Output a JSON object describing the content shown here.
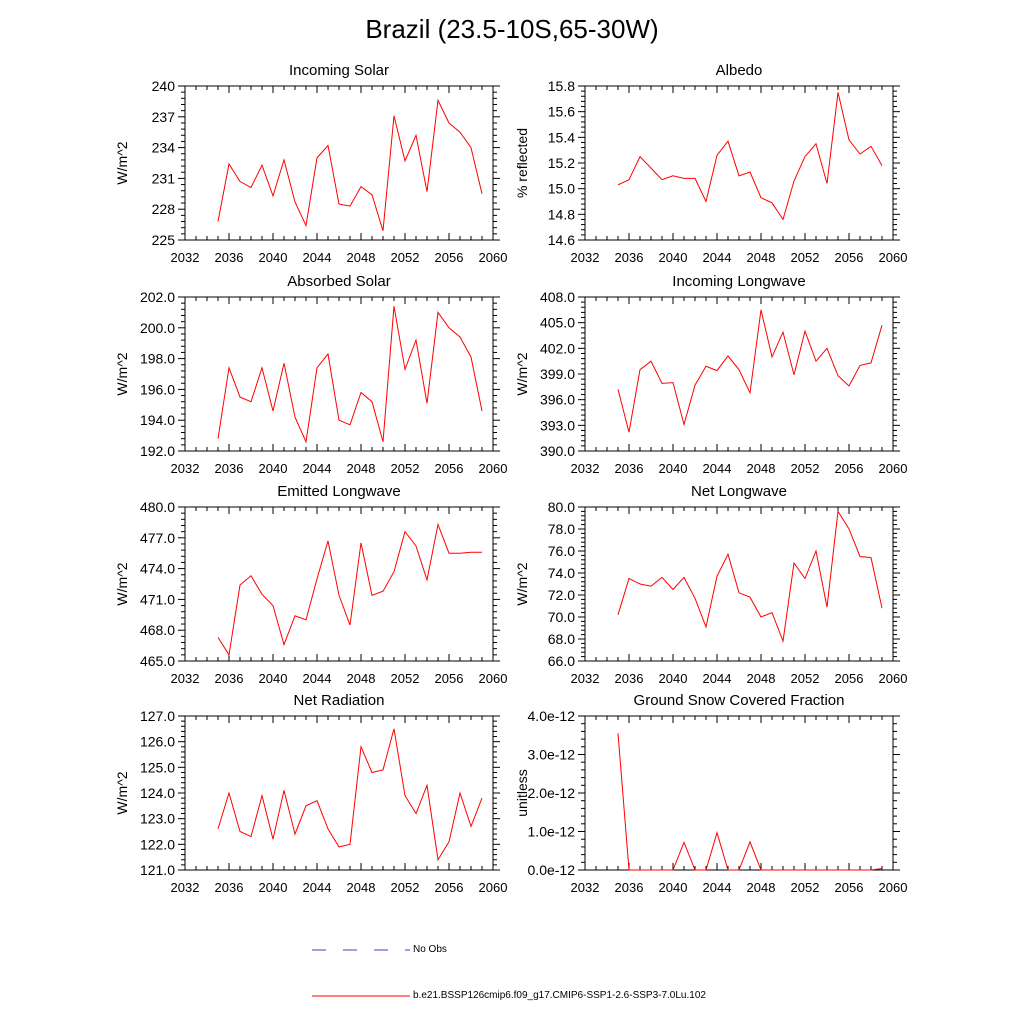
{
  "figure": {
    "title": "Brazil (23.5-10S,65-30W)"
  },
  "colors": {
    "series": "#ff0000",
    "obs": "#3b3bd6",
    "axis": "#000000"
  },
  "legend": {
    "obs_label": "No Obs",
    "model_label": "b.e21.BSSP126cmip6.f09_g17.CMIP6-SSP1-2.6-SSP3-7.0Lu.102"
  },
  "chart_data": [
    {
      "type": "line",
      "title": "Incoming Solar",
      "xlabel": "",
      "ylabel": "W/m^2",
      "xlim": [
        2032,
        2060
      ],
      "ylim": [
        225,
        240
      ],
      "xticks": [
        "2032",
        "2036",
        "2040",
        "2044",
        "2048",
        "2052",
        "2056",
        "2060"
      ],
      "yticks": [
        "225",
        "228",
        "231",
        "234",
        "237",
        "240"
      ],
      "series": [
        {
          "x": [
            2035,
            2036,
            2037,
            2038,
            2039,
            2040,
            2041,
            2042,
            2043,
            2044,
            2045,
            2046,
            2047,
            2048,
            2049,
            2050,
            2051,
            2052,
            2053,
            2054,
            2055,
            2056,
            2057,
            2058,
            2059
          ],
          "y": [
            226.8,
            232.4,
            230.7,
            230.1,
            232.3,
            229.3,
            232.8,
            228.7,
            226.4,
            233.0,
            234.2,
            228.5,
            228.3,
            230.2,
            229.4,
            225.9,
            237.1,
            232.7,
            235.2,
            229.7,
            238.6,
            236.4,
            235.5,
            234.0,
            229.5
          ]
        }
      ]
    },
    {
      "type": "line",
      "title": "Albedo",
      "xlabel": "",
      "ylabel": "% reflected",
      "xlim": [
        2032,
        2060
      ],
      "ylim": [
        14.6,
        15.8
      ],
      "xticks": [
        "2032",
        "2036",
        "2040",
        "2044",
        "2048",
        "2052",
        "2056",
        "2060"
      ],
      "yticks": [
        "14.6",
        "14.8",
        "15.0",
        "15.2",
        "15.4",
        "15.6",
        "15.8"
      ],
      "series": [
        {
          "x": [
            2035,
            2036,
            2037,
            2038,
            2039,
            2040,
            2041,
            2042,
            2043,
            2044,
            2045,
            2046,
            2047,
            2048,
            2049,
            2050,
            2051,
            2052,
            2053,
            2054,
            2055,
            2056,
            2057,
            2058,
            2059
          ],
          "y": [
            15.03,
            15.07,
            15.25,
            15.16,
            15.07,
            15.1,
            15.08,
            15.08,
            14.9,
            15.26,
            15.37,
            15.1,
            15.13,
            14.93,
            14.89,
            14.76,
            15.06,
            15.25,
            15.35,
            15.04,
            15.75,
            15.38,
            15.27,
            15.33,
            15.18
          ]
        }
      ]
    },
    {
      "type": "line",
      "title": "Absorbed Solar",
      "xlabel": "",
      "ylabel": "W/m^2",
      "xlim": [
        2032,
        2060
      ],
      "ylim": [
        192,
        202
      ],
      "xticks": [
        "2032",
        "2036",
        "2040",
        "2044",
        "2048",
        "2052",
        "2056",
        "2060"
      ],
      "yticks": [
        "192.0",
        "194.0",
        "196.0",
        "198.0",
        "200.0",
        "202.0"
      ],
      "series": [
        {
          "x": [
            2035,
            2036,
            2037,
            2038,
            2039,
            2040,
            2041,
            2042,
            2043,
            2044,
            2045,
            2046,
            2047,
            2048,
            2049,
            2050,
            2051,
            2052,
            2053,
            2054,
            2055,
            2056,
            2057,
            2058,
            2059
          ],
          "y": [
            192.8,
            197.4,
            195.5,
            195.2,
            197.4,
            194.6,
            197.7,
            194.2,
            192.6,
            197.4,
            198.3,
            194.0,
            193.7,
            195.8,
            195.2,
            192.6,
            201.4,
            197.3,
            199.2,
            195.1,
            201.0,
            200.0,
            199.4,
            198.1,
            194.6
          ]
        }
      ]
    },
    {
      "type": "line",
      "title": "Incoming Longwave",
      "xlabel": "",
      "ylabel": "W/m^2",
      "xlim": [
        2032,
        2060
      ],
      "ylim": [
        390,
        408
      ],
      "xticks": [
        "2032",
        "2036",
        "2040",
        "2044",
        "2048",
        "2052",
        "2056",
        "2060"
      ],
      "yticks": [
        "390.0",
        "393.0",
        "396.0",
        "399.0",
        "402.0",
        "405.0",
        "408.0"
      ],
      "series": [
        {
          "x": [
            2035,
            2036,
            2037,
            2038,
            2039,
            2040,
            2041,
            2042,
            2043,
            2044,
            2045,
            2046,
            2047,
            2048,
            2049,
            2050,
            2051,
            2052,
            2053,
            2054,
            2055,
            2056,
            2057,
            2058,
            2059
          ],
          "y": [
            397.2,
            392.2,
            399.5,
            400.5,
            397.9,
            398.0,
            393.1,
            397.7,
            399.9,
            399.4,
            401.1,
            399.5,
            396.8,
            406.5,
            401.0,
            403.9,
            398.9,
            404.0,
            400.5,
            402.0,
            398.8,
            397.6,
            400.0,
            400.3,
            404.7
          ]
        }
      ]
    },
    {
      "type": "line",
      "title": "Emitted Longwave",
      "xlabel": "",
      "ylabel": "W/m^2",
      "xlim": [
        2032,
        2060
      ],
      "ylim": [
        465,
        480
      ],
      "xticks": [
        "2032",
        "2036",
        "2040",
        "2044",
        "2048",
        "2052",
        "2056",
        "2060"
      ],
      "yticks": [
        "465.0",
        "468.0",
        "471.0",
        "474.0",
        "477.0",
        "480.0"
      ],
      "series": [
        {
          "x": [
            2035,
            2036,
            2037,
            2038,
            2039,
            2040,
            2041,
            2042,
            2043,
            2044,
            2045,
            2046,
            2047,
            2048,
            2049,
            2050,
            2051,
            2052,
            2053,
            2054,
            2055,
            2056,
            2057,
            2058,
            2059
          ],
          "y": [
            467.3,
            465.6,
            472.4,
            473.3,
            471.5,
            470.4,
            466.6,
            469.4,
            469.0,
            473.0,
            476.7,
            471.4,
            468.5,
            476.5,
            471.4,
            471.8,
            473.7,
            477.6,
            476.2,
            472.9,
            478.3,
            475.5,
            475.5,
            475.6,
            475.6
          ]
        }
      ]
    },
    {
      "type": "line",
      "title": "Net Longwave",
      "xlabel": "",
      "ylabel": "W/m^2",
      "xlim": [
        2032,
        2060
      ],
      "ylim": [
        66,
        80
      ],
      "xticks": [
        "2032",
        "2036",
        "2040",
        "2044",
        "2048",
        "2052",
        "2056",
        "2060"
      ],
      "yticks": [
        "66.0",
        "68.0",
        "70.0",
        "72.0",
        "74.0",
        "76.0",
        "78.0",
        "80.0"
      ],
      "series": [
        {
          "x": [
            2035,
            2036,
            2037,
            2038,
            2039,
            2040,
            2041,
            2042,
            2043,
            2044,
            2045,
            2046,
            2047,
            2048,
            2049,
            2050,
            2051,
            2052,
            2053,
            2054,
            2055,
            2056,
            2057,
            2058,
            2059
          ],
          "y": [
            70.2,
            73.5,
            73.0,
            72.8,
            73.6,
            72.5,
            73.6,
            71.7,
            69.1,
            73.7,
            75.7,
            72.2,
            71.8,
            70.0,
            70.4,
            67.8,
            74.9,
            73.5,
            76.0,
            70.9,
            79.6,
            78.0,
            75.5,
            75.4,
            70.8
          ]
        }
      ]
    },
    {
      "type": "line",
      "title": "Net Radiation",
      "xlabel": "",
      "ylabel": "W/m^2",
      "xlim": [
        2032,
        2060
      ],
      "ylim": [
        121,
        127
      ],
      "xticks": [
        "2032",
        "2036",
        "2040",
        "2044",
        "2048",
        "2052",
        "2056",
        "2060"
      ],
      "yticks": [
        "121.0",
        "122.0",
        "123.0",
        "124.0",
        "125.0",
        "126.0",
        "127.0"
      ],
      "series": [
        {
          "x": [
            2035,
            2036,
            2037,
            2038,
            2039,
            2040,
            2041,
            2042,
            2043,
            2044,
            2045,
            2046,
            2047,
            2048,
            2049,
            2050,
            2051,
            2052,
            2053,
            2054,
            2055,
            2056,
            2057,
            2058,
            2059
          ],
          "y": [
            122.6,
            124.0,
            122.5,
            122.3,
            123.9,
            122.2,
            124.1,
            122.4,
            123.5,
            123.7,
            122.6,
            121.9,
            122.0,
            125.8,
            124.8,
            124.9,
            126.5,
            123.9,
            123.2,
            124.3,
            121.4,
            122.1,
            124.0,
            122.7,
            123.8
          ]
        }
      ]
    },
    {
      "type": "line",
      "title": "Ground Snow Covered Fraction",
      "xlabel": "",
      "ylabel": "unitless",
      "xlim": [
        2032,
        2060
      ],
      "ylim": [
        0,
        4e-12
      ],
      "xticks": [
        "2032",
        "2036",
        "2040",
        "2044",
        "2048",
        "2052",
        "2056",
        "2060"
      ],
      "yticks": [
        "0.0e-12",
        "1.0e-12",
        "2.0e-12",
        "3.0e-12",
        "4.0e-12"
      ],
      "series": [
        {
          "x": [
            2035,
            2036,
            2037,
            2038,
            2039,
            2040,
            2041,
            2042,
            2043,
            2044,
            2045,
            2046,
            2047,
            2048,
            2049,
            2050,
            2051,
            2052,
            2053,
            2054,
            2055,
            2056,
            2057,
            2058,
            2059
          ],
          "y": [
            3.55e-12,
            0,
            0,
            0,
            0,
            0,
            7.2e-13,
            0,
            0,
            9.7e-13,
            0,
            0,
            7.3e-13,
            0,
            0,
            0,
            0,
            0,
            0,
            0,
            0,
            0,
            0,
            0,
            4e-14
          ]
        }
      ]
    }
  ]
}
